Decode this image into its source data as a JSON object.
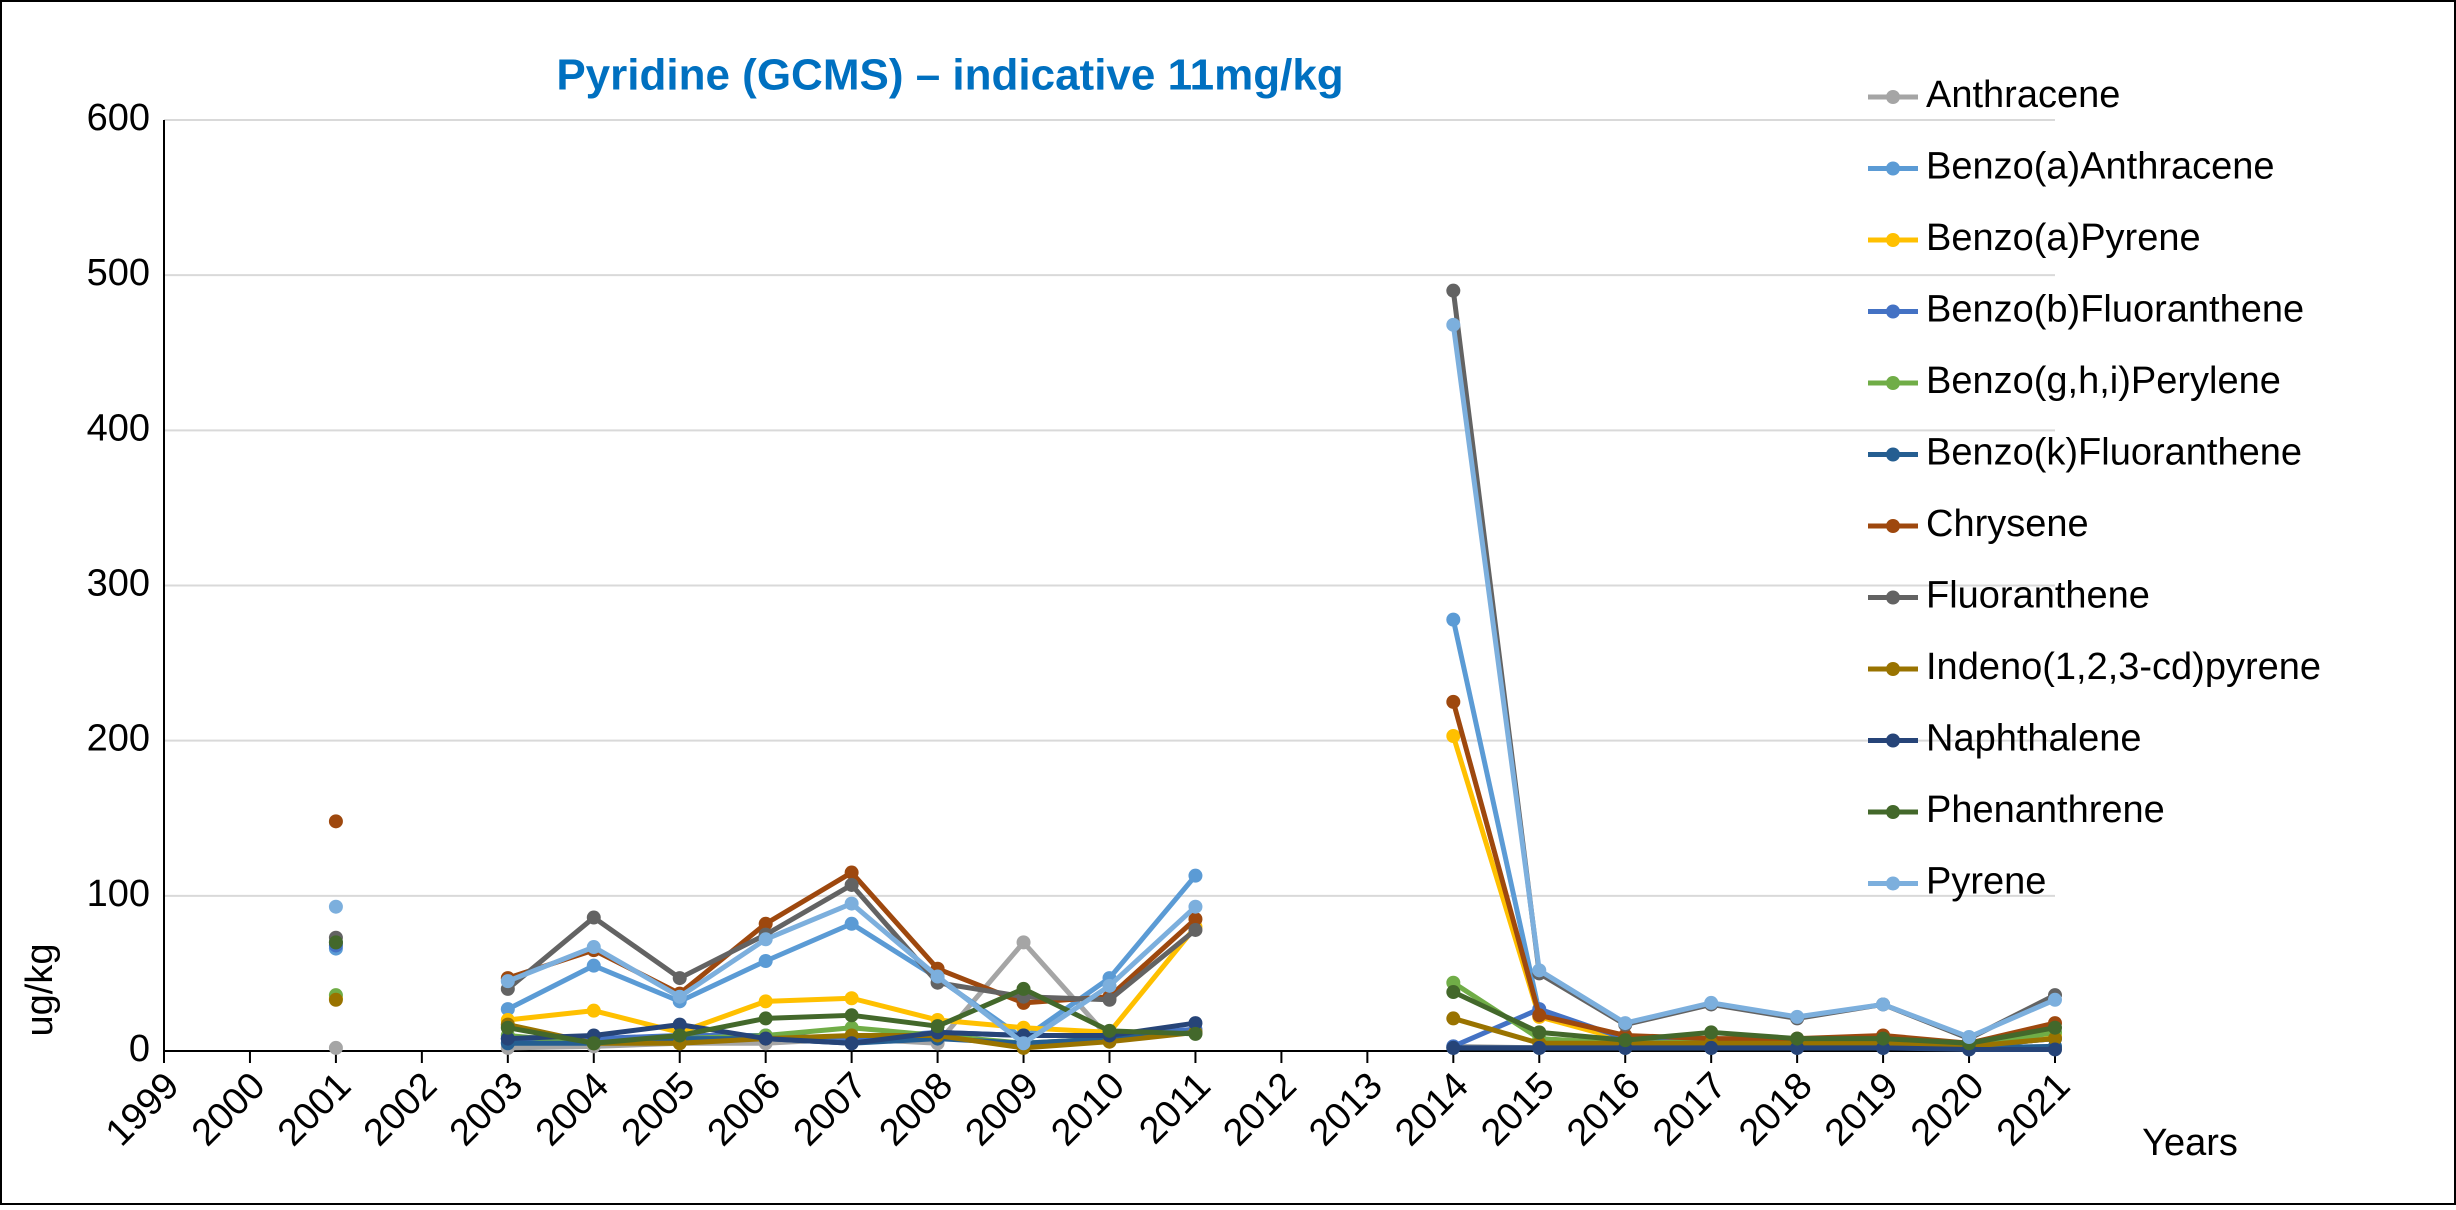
{
  "chart_data": {
    "type": "line",
    "title": "Pyridine (GCMS) – indicative 11mg/kg",
    "x_label": "Years",
    "y_label": "ug/kg",
    "categories": [
      "1999",
      "2000",
      "2001",
      "2002",
      "2003",
      "2004",
      "2005",
      "2006",
      "2007",
      "2008",
      "2009",
      "2010",
      "2011",
      "2012",
      "2013",
      "2014",
      "2015",
      "2016",
      "2017",
      "2018",
      "2019",
      "2020",
      "2021"
    ],
    "ylim": [
      0,
      600
    ],
    "yticks": [
      0,
      100,
      200,
      300,
      400,
      500,
      600
    ],
    "grid": true,
    "legend": "right",
    "series": [
      {
        "name": "Anthracene",
        "color": "#a5a5a5",
        "values": [
          null,
          null,
          2,
          null,
          2,
          3,
          5,
          5,
          8,
          5,
          70,
          8,
          12,
          null,
          null,
          3,
          2,
          2,
          2,
          2,
          2,
          2,
          2
        ]
      },
      {
        "name": "Benzo(a)Anthracene",
        "color": "#5b9bd5",
        "values": [
          null,
          null,
          66,
          null,
          27,
          55,
          32,
          58,
          82,
          47,
          8,
          47,
          113,
          null,
          null,
          278,
          25,
          8,
          6,
          5,
          6,
          3,
          8
        ]
      },
      {
        "name": "Benzo(a)Pyrene",
        "color": "#ffc000",
        "values": [
          null,
          null,
          34,
          null,
          20,
          26,
          12,
          32,
          34,
          20,
          15,
          12,
          80,
          null,
          null,
          203,
          22,
          7,
          5,
          4,
          5,
          3,
          10
        ]
      },
      {
        "name": "Benzo(b)Fluoranthene",
        "color": "#4472c4",
        "values": [
          null,
          null,
          68,
          null,
          8,
          8,
          10,
          10,
          8,
          12,
          10,
          10,
          14,
          null,
          null,
          3,
          27,
          8,
          6,
          5,
          6,
          3,
          8
        ]
      },
      {
        "name": "Benzo(g,h,i)Perylene",
        "color": "#70ad47",
        "values": [
          null,
          null,
          36,
          null,
          10,
          5,
          8,
          10,
          15,
          10,
          5,
          8,
          12,
          null,
          null,
          44,
          8,
          5,
          6,
          5,
          6,
          3,
          12
        ]
      },
      {
        "name": "Benzo(k)Fluoranthene",
        "color": "#255e91",
        "values": [
          null,
          null,
          70,
          null,
          5,
          5,
          8,
          8,
          5,
          8,
          5,
          8,
          12,
          null,
          null,
          2,
          2,
          2,
          2,
          2,
          2,
          2,
          3
        ]
      },
      {
        "name": "Chrysene",
        "color": "#9e480e",
        "values": [
          null,
          null,
          148,
          null,
          47,
          65,
          37,
          82,
          115,
          53,
          31,
          35,
          85,
          null,
          null,
          225,
          23,
          10,
          8,
          8,
          10,
          5,
          18
        ]
      },
      {
        "name": "Fluoranthene",
        "color": "#636363",
        "values": [
          null,
          null,
          73,
          null,
          40,
          86,
          47,
          75,
          107,
          44,
          35,
          33,
          78,
          null,
          null,
          490,
          50,
          17,
          30,
          21,
          30,
          8,
          36
        ]
      },
      {
        "name": "Indeno(1,2,3-cd)pyrene",
        "color": "#997300",
        "values": [
          null,
          null,
          33,
          null,
          17,
          5,
          5,
          8,
          10,
          10,
          2,
          6,
          12,
          null,
          null,
          21,
          5,
          5,
          5,
          5,
          5,
          3,
          8
        ]
      },
      {
        "name": "Naphthalene",
        "color": "#264478",
        "values": [
          null,
          null,
          null,
          null,
          8,
          10,
          17,
          8,
          5,
          12,
          10,
          10,
          18,
          null,
          null,
          2,
          2,
          2,
          2,
          2,
          2,
          1,
          1
        ]
      },
      {
        "name": "Phenanthrene",
        "color": "#43682b",
        "values": [
          null,
          null,
          70,
          null,
          15,
          5,
          10,
          21,
          23,
          16,
          40,
          13,
          11,
          null,
          null,
          38,
          12,
          7,
          12,
          8,
          8,
          5,
          15
        ]
      },
      {
        "name": "Pyrene",
        "color": "#7cafdd",
        "values": [
          null,
          null,
          93,
          null,
          45,
          67,
          35,
          72,
          95,
          48,
          5,
          42,
          93,
          null,
          null,
          468,
          52,
          18,
          31,
          22,
          30,
          9,
          33
        ]
      }
    ]
  }
}
